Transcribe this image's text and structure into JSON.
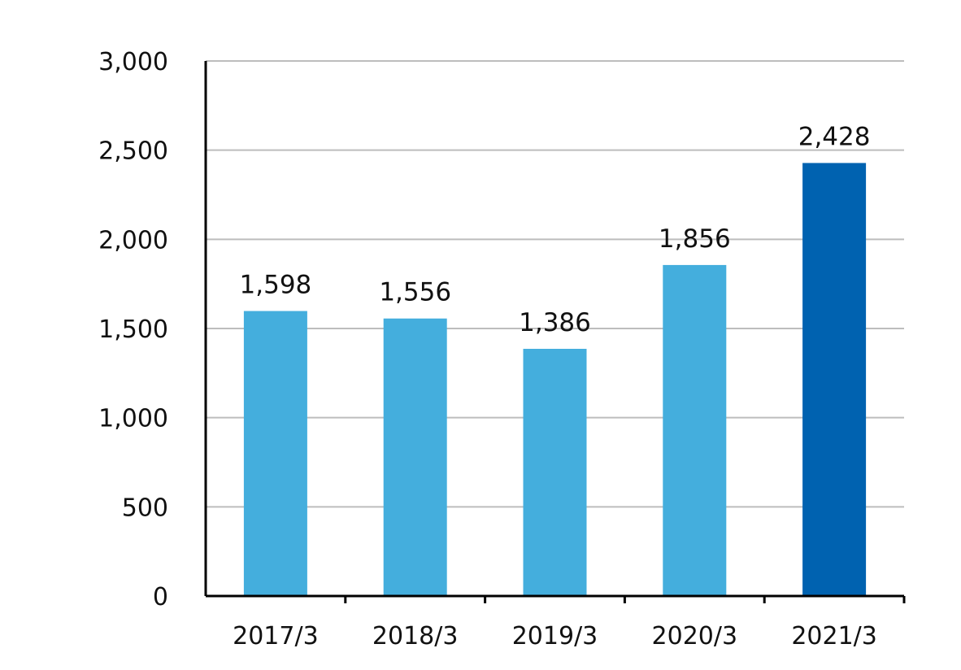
{
  "chart_data": {
    "type": "bar",
    "categories": [
      "2017/3",
      "2018/3",
      "2019/3",
      "2020/3",
      "2021/3"
    ],
    "values": [
      1598,
      1556,
      1386,
      1856,
      2428
    ],
    "data_labels": [
      "1,598",
      "1,556",
      "1,386",
      "1,856",
      "2,428"
    ],
    "yticks": [
      0,
      500,
      1000,
      1500,
      2000,
      2500,
      3000
    ],
    "ytick_labels": [
      "0",
      "500",
      "1,000",
      "1,500",
      "2,000",
      "2,500",
      "3,000"
    ],
    "ylim": [
      0,
      3000
    ],
    "grid": true,
    "legend": "none",
    "colors": {
      "bar": "#44aedd",
      "highlight_bar": "#0062b0",
      "grid": "#bdbdbd",
      "axis": "#000000"
    },
    "highlight_index": 4
  }
}
